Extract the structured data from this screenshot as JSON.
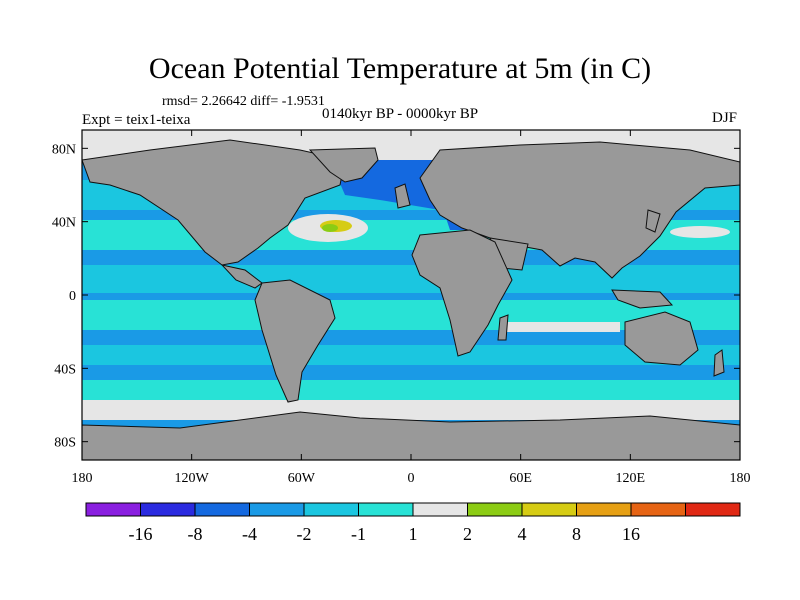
{
  "title": "Ocean Potential Temperature at 5m (in C)",
  "stats": "rmsd= 2.26642 diff= -1.9531",
  "experiment": "Expt = teix1-teixa",
  "period": "0140kyr BP - 0000kyr BP",
  "season": "DJF",
  "map": {
    "lon_range": [
      -180,
      180
    ],
    "lat_range": [
      -90,
      90
    ],
    "lon_ticks": [
      {
        "lon": -180,
        "label": "180"
      },
      {
        "lon": -120,
        "label": "120W"
      },
      {
        "lon": -60,
        "label": "60W"
      },
      {
        "lon": 0,
        "label": "0"
      },
      {
        "lon": 60,
        "label": "60E"
      },
      {
        "lon": 120,
        "label": "120E"
      },
      {
        "lon": 180,
        "label": "180"
      }
    ],
    "lat_ticks": [
      {
        "lat": 80,
        "label": "80N"
      },
      {
        "lat": 40,
        "label": "40N"
      },
      {
        "lat": 0,
        "label": "0"
      },
      {
        "lat": -40,
        "label": "40S"
      },
      {
        "lat": -80,
        "label": "80S"
      }
    ]
  },
  "colorbar": {
    "colors": [
      "#8a1fe0",
      "#2b2be0",
      "#1469e0",
      "#1a9ae6",
      "#1bc6e0",
      "#28e2d6",
      "#e6e6e6",
      "#8ccc14",
      "#d6cc14",
      "#e6a014",
      "#e66414",
      "#e02814"
    ],
    "labels": [
      "-16",
      "-8",
      "-4",
      "-2",
      "-1",
      "1",
      "2",
      "4",
      "8",
      "16"
    ]
  }
}
